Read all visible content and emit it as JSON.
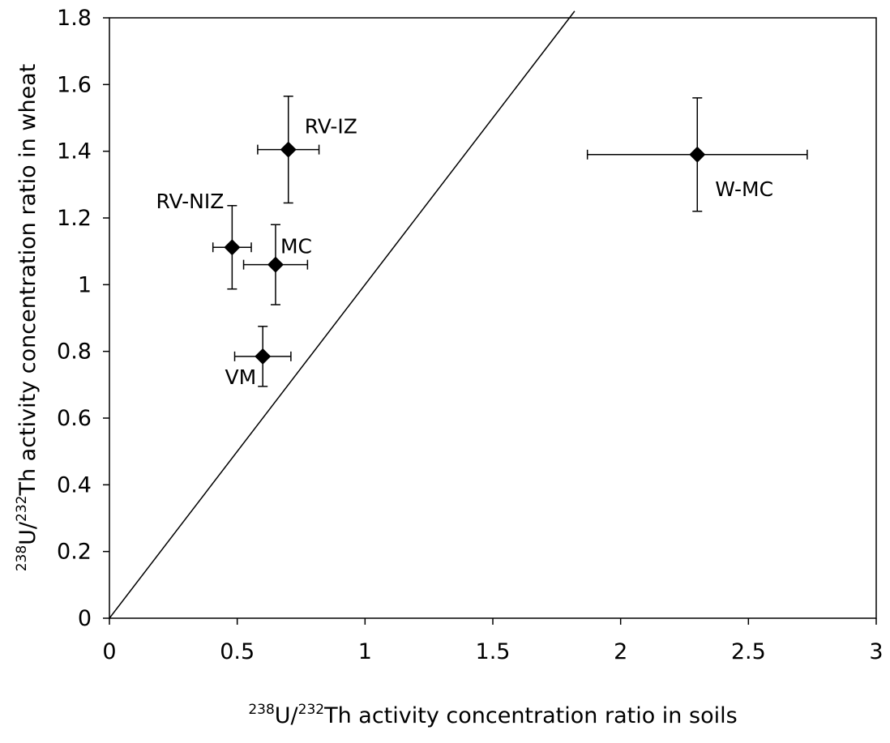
{
  "chart_data": {
    "type": "scatter",
    "title": "",
    "xlabel": {
      "iso1": "238",
      "el1": "U/",
      "iso2": "232",
      "el2": "Th activity concentration ratio in soils"
    },
    "ylabel": {
      "iso1": "238",
      "el1": "U/",
      "iso2": "232",
      "el2": "Th activity concentration ratio in wheat"
    },
    "xlim": [
      0,
      3
    ],
    "ylim": [
      0,
      1.8
    ],
    "x_ticks": [
      "0",
      "0.5",
      "1",
      "1.5",
      "2",
      "2.5",
      "3"
    ],
    "y_ticks": [
      "0",
      "0.2",
      "0.4",
      "0.6",
      "0.8",
      "1",
      "1.2",
      "1.4",
      "1.6",
      "1.8"
    ],
    "grid": false,
    "reference_line": {
      "from": [
        0,
        0
      ],
      "to": [
        1.82,
        1.82
      ]
    },
    "points": [
      {
        "label": "RV-IZ",
        "x": 0.7,
        "y": 1.405,
        "x_err": 0.12,
        "y_err": 0.16
      },
      {
        "label": "RV-NIZ",
        "x": 0.48,
        "y": 1.112,
        "x_err": 0.075,
        "y_err": 0.125
      },
      {
        "label": "MC",
        "x": 0.65,
        "y": 1.06,
        "x_err": 0.125,
        "y_err": 0.12
      },
      {
        "label": "VM",
        "x": 0.6,
        "y": 0.785,
        "x_err": 0.11,
        "y_err": 0.09
      },
      {
        "label": "W-MC",
        "x": 2.3,
        "y": 1.39,
        "x_err": 0.43,
        "y_err": 0.17
      }
    ]
  }
}
